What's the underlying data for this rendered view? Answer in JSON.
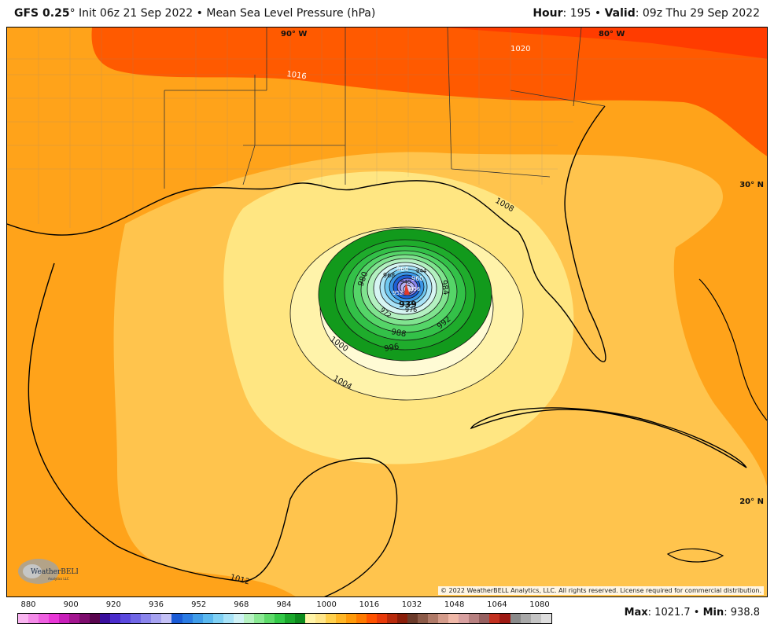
{
  "header": {
    "model": "GFS 0.25",
    "degree": "°",
    "init": " Init 06z 21 Sep 2022",
    "bullet": " • ",
    "field": "Mean Sea Level Pressure (hPa)",
    "hour_label": "Hour",
    "hour_value": ": 195",
    "valid_label": "Valid",
    "valid_value": ": 09z Thu 29 Sep 2022"
  },
  "map": {
    "lon_labels": [
      "90° W",
      "80° W"
    ],
    "lat_labels": [
      "30° N",
      "20° N"
    ],
    "contour_labels": [
      "1020",
      "1016",
      "1008",
      "1004",
      "1000",
      "996",
      "992",
      "988",
      "984",
      "980",
      "976",
      "972",
      "968",
      "964",
      "960",
      "956",
      "952",
      "944",
      "940",
      "939",
      "1012"
    ],
    "center_label": "939",
    "copyright": "© 2022 WeatherBELL Analytics, LLC. All rights reserved. License required for commercial distribution.",
    "logo_text": "WeatherBELL",
    "logo_subtext": "Analytics LLC"
  },
  "legend": {
    "ticks": [
      "880",
      "900",
      "920",
      "936",
      "952",
      "968",
      "984",
      "1000",
      "1016",
      "1032",
      "1048",
      "1064",
      "1080"
    ],
    "colors": [
      "#f9b4f0",
      "#f48ae8",
      "#ee5fe0",
      "#e836d6",
      "#c81eb9",
      "#a3158f",
      "#7d0c6d",
      "#59054e",
      "#3a0f9e",
      "#4a2ccc",
      "#5b49df",
      "#7066e6",
      "#8a84ec",
      "#a6a2f1",
      "#c4c1f6",
      "#1a5bd6",
      "#2a7be3",
      "#3f9ce9",
      "#5ab8ef",
      "#7fd0f4",
      "#a8e3f8",
      "#d0f2f6",
      "#b6f2c2",
      "#8ae993",
      "#5edb6a",
      "#33c948",
      "#1aa82c",
      "#0d8a1d",
      "#fff4a8",
      "#ffe68a",
      "#ffd04d",
      "#ffb626",
      "#ff9a0a",
      "#ff7a00",
      "#ff5200",
      "#e83a0a",
      "#b82a0c",
      "#8a1e0a",
      "#6b3a2a",
      "#8c5a48",
      "#b07a68",
      "#d49b8a",
      "#f0b8a8",
      "#d8a0a0",
      "#b78080",
      "#966060",
      "#c23020",
      "#9e1a14",
      "#8a8a8a",
      "#a8a8a8",
      "#c4c4c4",
      "#dedede"
    ]
  },
  "stats": {
    "max_label": "Max",
    "max_value": ": 1021.7",
    "separator": " • ",
    "min_label": "Min",
    "min_value": ": 938.8"
  }
}
